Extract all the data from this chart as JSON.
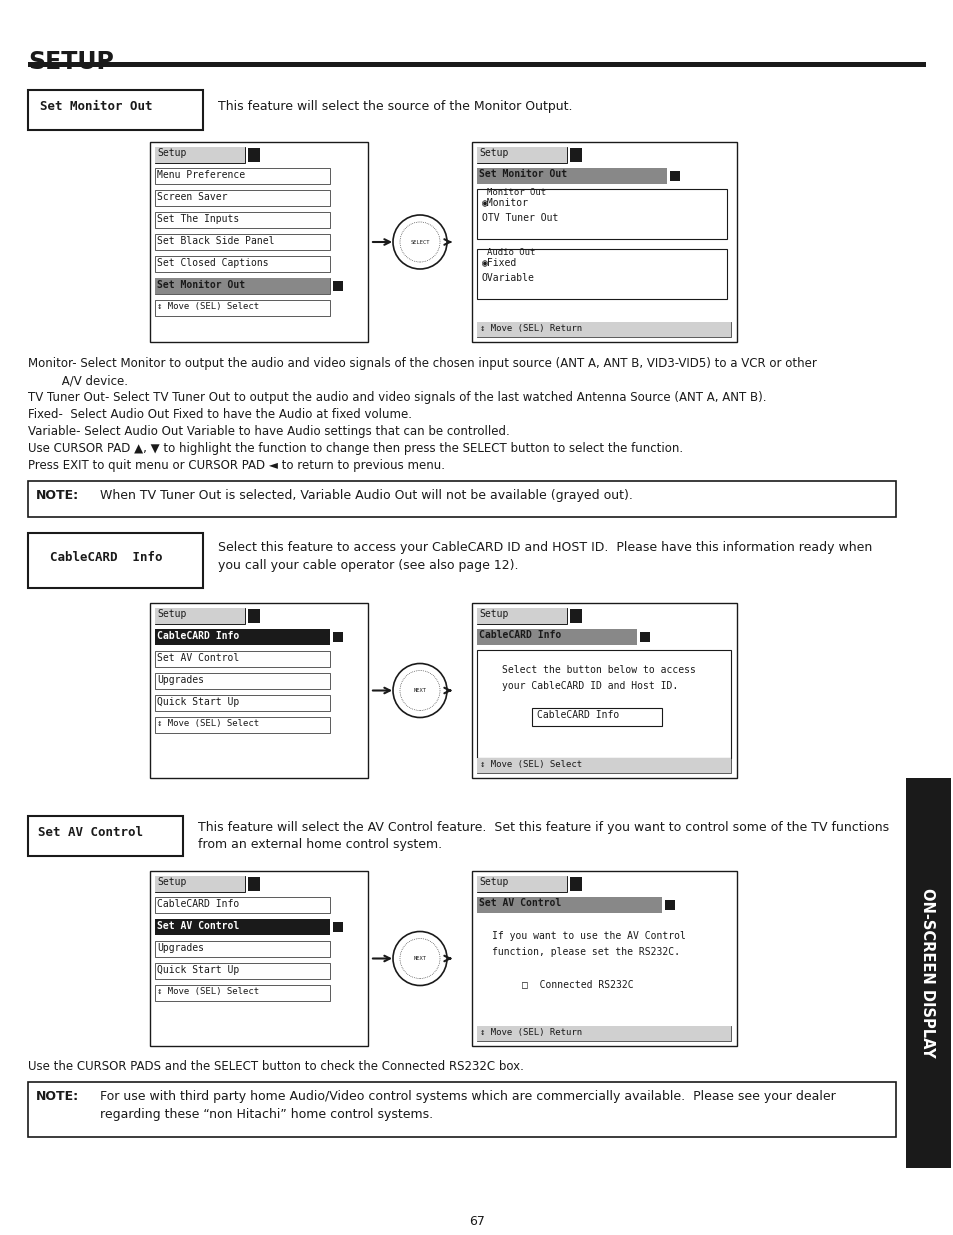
{
  "title": "SETUP",
  "page_number": "67",
  "bg_color": "#ffffff",
  "text_color": "#1a1a1a",
  "section1": {
    "label": "Set Monitor Out",
    "description": "This feature will select the source of the Monitor Output.",
    "left_menu": {
      "title": "Setup",
      "items": [
        "Menu Preference",
        "Screen Saver",
        "Set The Inputs",
        "Set Black Side Panel",
        "Set Closed Captions",
        "Set Monitor Out",
        "↕ Move (SEL) Select"
      ],
      "selected": "Set Monitor Out"
    },
    "right_menu": {
      "title": "Setup",
      "selected_item": "Set Monitor Out",
      "groups": [
        {
          "label": "Monitor Out",
          "items": [
            "◉Monitor",
            "OTV Tuner Out"
          ]
        },
        {
          "label": "Audio Out",
          "items": [
            "◉Fixed",
            "OVariable"
          ]
        }
      ],
      "footer": "↕ Move (SEL) Return"
    },
    "body_text": [
      "Monitor- Select Monitor to output the audio and video signals of the chosen input source (ANT A, ANT B, VID3-VID5) to a VCR or other",
      "         A/V device.",
      "TV Tuner Out- Select TV Tuner Out to output the audio and video signals of the last watched Antenna Source (ANT A, ANT B).",
      "Fixed-  Select Audio Out Fixed to have the Audio at fixed volume.",
      "Variable- Select Audio Out Variable to have Audio settings that can be controlled.",
      "Use CURSOR PAD ▲, ▼ to highlight the function to change then press the SELECT button to select the function.",
      "Press EXIT to quit menu or CURSOR PAD ◄ to return to previous menu."
    ]
  },
  "note1_label": "NOTE:",
  "note1_text": "When TV Tuner Out is selected, Variable Audio Out will not be available (grayed out).",
  "section2": {
    "label": "CableCARD Info",
    "description": "Select this feature to access your CableCARD ID and HOST ID.  Please have this information ready when\nyou call your cable operator (see also page 12).",
    "left_menu": {
      "title": "Setup",
      "items": [
        "CableCARD Info",
        "Set AV Control",
        "Upgrades",
        "Quick Start Up",
        "↕ Move (SEL) Select"
      ],
      "selected": "CableCARD Info"
    },
    "right_menu": {
      "title": "Setup",
      "selected_item": "CableCARD Info",
      "body_line1": "Select the button below to access",
      "body_line2": "your CableCARD ID and Host ID.",
      "button": "CableCARD Info",
      "footer": "↕ Move (SEL) Select"
    }
  },
  "section3": {
    "label": "Set AV Control",
    "description": "This feature will select the AV Control feature.  Set this feature if you want to control some of the TV functions\nfrom an external home control system.",
    "left_menu": {
      "title": "Setup",
      "items": [
        "CableCARD Info",
        "Set AV Control",
        "Upgrades",
        "Quick Start Up",
        "↕ Move (SEL) Select"
      ],
      "selected": "Set AV Control"
    },
    "right_menu": {
      "title": "Setup",
      "selected_item": "Set AV Control",
      "body_line1": "If you want to use the AV Control",
      "body_line2": "function, please set the RS232C.",
      "checkbox": "□  Connected RS232C",
      "footer": "↕ Move (SEL) Return"
    },
    "body_text": "Use the CURSOR PADS and the SELECT button to check the Connected RS232C box."
  },
  "note2_label": "NOTE:",
  "note2_text": "For use with third party home Audio/Video control systems which are commercially available.  Please see your dealer\n          regarding these “non Hitachi” home control systems.",
  "sidebar_text": "ON-SCREEN DISPLAY"
}
